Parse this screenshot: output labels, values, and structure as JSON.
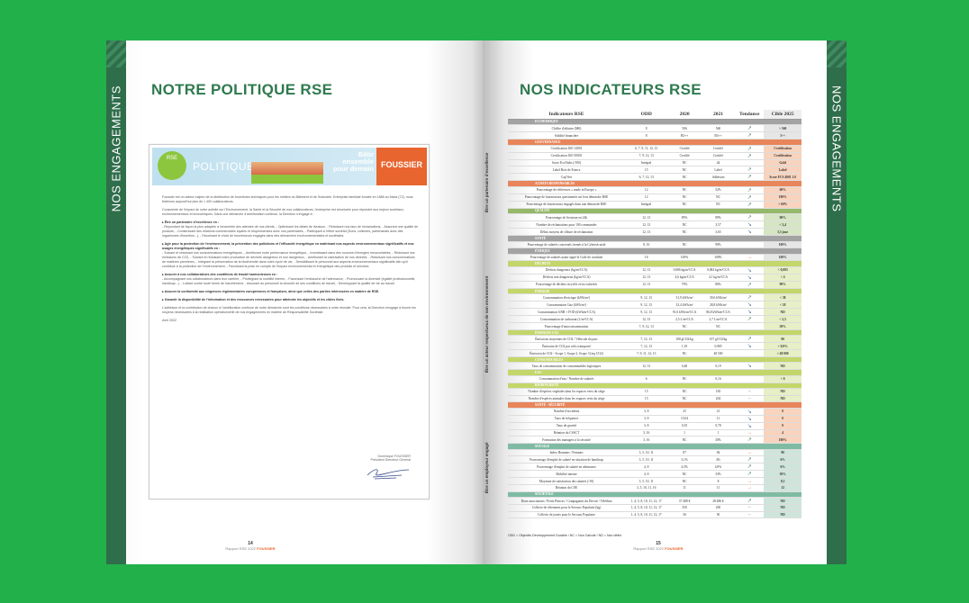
{
  "left_page": {
    "spine_text": "NOS ENGAGEMENTS",
    "title": "NOTRE POLITIQUE RSE",
    "banner": {
      "badge": "RSE",
      "title": "POLITIQUE RSE",
      "slogan": "Bâtir ensemble pour demain",
      "brand": "FOUSSIER"
    },
    "paragraphs": [
      "Foussier est un acteur majeur de la distribution de fournitures techniques pour les métiers du Bâtiment et de l'Industrie. Entreprise familiale fondée en 1886 au Mans (72), nous fédérons aujourd'hui plus de 1 400 collaborateurs.",
      "Consciente de l'impact de notre activité sur l'Environnement, la Santé et la Sécurité de nos collaborateurs, l'entreprise est structurée pour répondre aux enjeux sociétaux, environnementaux et économiques. Dans une démarche d'amélioration continue, la Direction s'engage à :"
    ],
    "sections": [
      {
        "heading": "▸ Être un partenaire d'excellence en :",
        "text": "- Répondant de façon la plus adaptée à l'ensemble des attentes de nos clients, - Optimisant les délais de livraison, - Réduisant nos taux de réclamations, - Assurant une qualité de produits, - Construisant des relations commerciales loyales et respectueuses avec nos partenaires, - Participant à l'effort sociétal (Dons, collectes, partenariats avec des organismes d'insertion...), - Favorisant le choix de fournisseurs engagés dans des démarches environnementales et sociétales."
      },
      {
        "heading": "▸ Agir pour la protection de l'environnement, la prévention des pollutions et l'efficacité énergétique en maitrisant nos aspects environnementaux significatifs et nos usages énergétiques significatifs en :",
        "text": "- Suivant et réduisant nos consommations énergétiques, - Améliorant notre performance énergétique, - Investissant dans des sources d'énergies renouvelables, - Réduisant nos émissions de CO2, - Suivant et réduisant notre production de déchets dangereux et non dangereux, - Améliorant la valorisation de nos déchets, - Réduisant nos consommations de matières premières, - Intégrant la préservation de la biodiversité dans notre cycle de vie, - Sensibilisant le personnel aux aspects environnementaux significatifs afin qu'il contribue à la protection de l'environnement, - Favorisant la prise en compte de l'impact environnemental et énergétique des produits et services."
      },
      {
        "heading": "▸ Assurer à nos collaborateurs des conditions de travail harmonieuses en :",
        "text": "- Accompagnant nos collaborateurs dans leur carrière, - Privilégiant la mobilité interne, - Favorisant l'embauche de l'alternance, - Promouvant la diversité (égalité professionnelle, handicap...), - Luttant contre toute forme de harcèlement, - Assurant au personnel la sécurité de ses conditions de travail, - Développant la qualité de vie au travail."
      },
      {
        "heading": "▸ Assurer la conformité aux exigences réglementaires européennes et françaises, ainsi que celles des parties intéressées en matière de RSE.",
        "text": ""
      },
      {
        "heading": "▸ Garantir la disponibilité de l'information et des ressources nécessaires pour atteindre les objectifs et les cibles fixés.",
        "text": ""
      }
    ],
    "closing": "L'adhésion et la contribution de chacun à l'amélioration continue de notre démarche sont les conditions nécessaires à notre réussite. Pour cela, la Direction s'engage à fournir les moyens nécessaires à la réalisation opérationnelle de nos engagements en matière de Responsabilité Sociétale.",
    "date": "Avril 2022",
    "signatory": "Dominique FOUSSIER",
    "signatory_role": "Président Directeur Général",
    "page_number": "14",
    "footer": "Rapport RSE 2022",
    "footer_brand": "FOUSSIER"
  },
  "right_page": {
    "spine_text": "NOS ENGAGEMENTS",
    "title": "NOS INDICATEURS RSE",
    "columns": [
      "Indicateurs RSE",
      "ODD",
      "2020",
      "2021",
      "Tendance",
      "Cible 2025"
    ],
    "groups": [
      "Être un partenaire d'excellence",
      "Être un acteur respectueux de son environnement",
      "Être un employeur engagé"
    ],
    "sections": [
      {
        "name": "ÉCONOMIQUE",
        "color": "#a3a3a3",
        "tint": "#e6e6e6",
        "rows": [
          [
            "Chiffre d'affaires (M€)",
            "8",
            "506",
            "560",
            "↗",
            "> 560"
          ],
          [
            "Solidité financière",
            "8",
            "B3++",
            "B3++",
            "↗",
            "3++"
          ]
        ]
      },
      {
        "name": "GOUVERNANCE",
        "color": "#e8855a",
        "tint": "#f8d3bd",
        "rows": [
          [
            "Certification ISO 14001",
            "6, 7, 9, 11, 12, 13",
            "Certifié",
            "Certifié",
            "↗",
            "Certification"
          ],
          [
            "Certification ISO 50001",
            "7, 9, 12, 13",
            "Certifié",
            "Certifié",
            "↗",
            "Certification"
          ],
          [
            "Score EcoVadis (/100)",
            "Intégral",
            "NC",
            "44",
            "",
            "Gold"
          ],
          [
            "Label Bois de France",
            "15",
            "NC",
            "Label",
            "↗",
            "Label"
          ],
          [
            "Cap'Vert",
            "6, 7, 12, 13",
            "NC",
            "Adhésion",
            "↗",
            "Score FCS 4001 1.0"
          ]
        ]
      },
      {
        "name": "ACHATS RESPONSABLES",
        "color": "#e8855a",
        "tint": "#f8d3bd",
        "rows": [
          [
            "Pourcentage de références « made in Europe »",
            "12",
            "NC",
            "52%",
            "↗",
            "60%"
          ],
          [
            "Pourcentage de fournisseurs questionnés sur leur démarche RSE",
            "12",
            "NC",
            "NC",
            "↗",
            "100%"
          ],
          [
            "Pourcentage de fournisseurs engagés dans une démarche RSE",
            "Intégral",
            "NC",
            "NC",
            "↗",
            "> 60%"
          ]
        ]
      },
      {
        "name": "QUALITÉ",
        "color": "#95b86a",
        "tint": "#d6e5c4",
        "rows": [
          [
            "Pourcentage de livraison en 24h",
            "12, 13",
            "85%",
            "89%",
            "↗",
            "90%"
          ],
          [
            "Nombre de réclamations pour 100 commandes",
            "12, 13",
            "NC",
            "3,57",
            "↘",
            "< 3,4"
          ],
          [
            "Délais moyens de clôture de réclamation",
            "12, 13",
            "NC",
            "3,65",
            "↘",
            "3,5 jour"
          ]
        ]
      },
      {
        "name": "SANTÉ",
        "color": "#a3a3a3",
        "tint": "#e6e6e6",
        "rows": [
          [
            "Pourcentage de salariés concernés formés à la Cybersécurité",
            "8, 16",
            "NC",
            "90%",
            "",
            "100%"
          ]
        ]
      },
      {
        "name": "ÉTHIQUE",
        "color": "#a3a3a3",
        "tint": "#e6e6e6",
        "rows": [
          [
            "Pourcentage de salariés ayant signé le Code de conduite",
            "16",
            "100%",
            "100%",
            "→",
            "100%"
          ]
        ]
      },
      {
        "name": "DÉCHETS",
        "color": "#c3d66a",
        "tint": "#e7efc6",
        "rows": [
          [
            "Déchets dangereux (kg/m²CCA)",
            "12, 13",
            "0,086 kg/m²CCA",
            "0,084 kg/m²CCA",
            "↘",
            "< 0,083"
          ],
          [
            "Déchets non dangereux (kg/m²CCA)",
            "12, 13",
            "4,6 kg/m²CCA",
            "4,1 kg/m²CCA",
            "↘",
            "< 4"
          ],
          [
            "Pourcentage de déchets recyclés et/ou valorisés",
            "12, 13",
            "70%",
            "86%",
            "↗",
            "90%"
          ]
        ]
      },
      {
        "name": "ÉNERGIE",
        "color": "#c3d66a",
        "tint": "#e7efc6",
        "rows": [
          [
            "Consommation électrique (kWh/m²)",
            "9, 12, 13",
            "31,9 kWh/m²",
            "39,6 kWh/m²",
            "↗",
            "< 38"
          ],
          [
            "Consommation Gaz (kWh/m²)",
            "9, 12, 13",
            "32,4 kWh/m²",
            "28,8 kWh/m²",
            "↘",
            "< 18"
          ],
          [
            "Consommation GNR + FOD (kWh/m²CCA)",
            "9, 12, 13",
            "91,0 kWh/m²CCA",
            "86,8 kWh/m²CCA",
            "↘",
            "ND"
          ],
          [
            "Consommation de carburant (L/m²CCA)",
            "12, 13",
            "2,5 L/m²CCA",
            "2,7 L/m²CCA",
            "↗",
            "< 2,5"
          ],
          [
            "Pourcentage d'autoconsommation",
            "7, 9, 12, 13",
            "NC",
            "NC",
            "",
            "50%"
          ]
        ]
      },
      {
        "name": "ÉMISSION CO2",
        "color": "#c3d66a",
        "tint": "#e7efc6",
        "rows": [
          [
            "Émissions moyennes de CO2 / Véhicule du parc",
            "7, 12, 13",
            "108 gCO2/kg",
            "107 gCO2/kg",
            "↗",
            "90"
          ],
          [
            "Émission de CO2 par colis transporté",
            "7, 12, 13",
            "1,19",
            "0,985",
            "↘",
            "< 0,9%"
          ],
          [
            "Émission de CO2 - Scope 1, Scope 2, Scope 3 (teq CO2)",
            "7, 9, 11, 12, 13",
            "NC",
            "48 500",
            "",
            "< 48 000"
          ]
        ]
      },
      {
        "name": "CONSOMMABLES",
        "color": "#c3d66a",
        "tint": "#e7efc6",
        "rows": [
          [
            "Taux de consommation de consommables logistiques",
            "12, 13",
            "0,48",
            "0,19",
            "↘",
            "ND"
          ]
        ]
      },
      {
        "name": "EAU",
        "color": "#c3d66a",
        "tint": "#e7efc6",
        "rows": [
          [
            "Consommation d'eau / Nombre de salariés",
            "6",
            "NC",
            "0,16",
            "",
            "< 6"
          ]
        ]
      },
      {
        "name": "BIODIVERSITÉ",
        "color": "#c3d66a",
        "tint": "#e7efc6",
        "rows": [
          [
            "Nombre d'espèces végétales dans les espaces verts du siège",
            "15",
            "NC",
            "165",
            "–",
            "ND"
          ],
          [
            "Nombre d'espèces animales dans les espaces verts du siège",
            "15",
            "NC",
            "204",
            "–",
            "ND"
          ]
        ]
      },
      {
        "name": "SANTÉ - SÉCURITÉ",
        "color": "#e8855a",
        "tint": "#f8d3bd",
        "rows": [
          [
            "Nombre d'accidents",
            "3, 8",
            "25",
            "21",
            "↘",
            "0"
          ],
          [
            "Taux de fréquence",
            "3, 8",
            "15,04",
            "11",
            "↘",
            "0"
          ],
          [
            "Taux de gravité",
            "3, 8",
            "0,35",
            "0,78",
            "↘",
            "0"
          ],
          [
            "Réunion du CSSCT",
            "3, 16",
            "1",
            "1",
            "→",
            "4"
          ],
          [
            "Formation des managers à la sécurité",
            "3, 16",
            "NC",
            "30%",
            "↗",
            "100%"
          ]
        ]
      },
      {
        "name": "SOCIALE",
        "color": "#7fbba3",
        "tint": "#cfe5db",
        "rows": [
          [
            "Index Hommes / Femmes",
            "3, 5, 10, 11",
            "87",
            "84",
            "→",
            "90"
          ],
          [
            "Pourcentage d'emploi de salarié en situation de handicap",
            "3, 5, 10, 11",
            "3,1%",
            "4%",
            "↗",
            "6%"
          ],
          [
            "Pourcentage d'emploi de salarié en alternance",
            "4, 8",
            "4,5%",
            "4,9%",
            "↗",
            "6%"
          ],
          [
            "Mobilité interne",
            "4, 8",
            "NC",
            "33%",
            "↗",
            "30%"
          ],
          [
            "Moyenne de satisfaction des salariés (/10)",
            "3, 5, 10, 11",
            "NC",
            "8",
            "→",
            "8,5"
          ],
          [
            "Réunion du CSE",
            "3, 5, 10, 11, 16",
            "11",
            "11",
            "→",
            "12"
          ]
        ]
      },
      {
        "name": "SOCIÉTALE",
        "color": "#7fbba3",
        "tint": "#cfe5db",
        "rows": [
          [
            "Dons associations / Petits Princes / Compagnons du Devoir / Téléthon",
            "1, 4, 5, 8, 10, 11, 12, 17",
            "37 488 €",
            "28 486 €",
            "↗",
            "ND"
          ],
          [
            "Collecte de vêtements pour le Secours Populaire (kg)",
            "1, 4, 5, 8, 10, 11, 12, 17",
            "350",
            "450",
            "–",
            "ND"
          ],
          [
            "Collecte de jouets pour le Secours Populaire",
            "1, 4, 5, 8, 10, 11, 12, 17",
            "56",
            "50",
            "–",
            "ND"
          ]
        ]
      }
    ],
    "note": "ODD = Objectifs Développement Durable / NC = Non Calculé / ND = Non défini",
    "page_number": "15",
    "footer": "Rapport RSE 2022",
    "footer_brand": "FOUSSIER"
  },
  "colors": {
    "background": "#22b04b",
    "spine": "#2f6e4a",
    "title": "#2f7a4f",
    "brand": "#e8652f"
  }
}
